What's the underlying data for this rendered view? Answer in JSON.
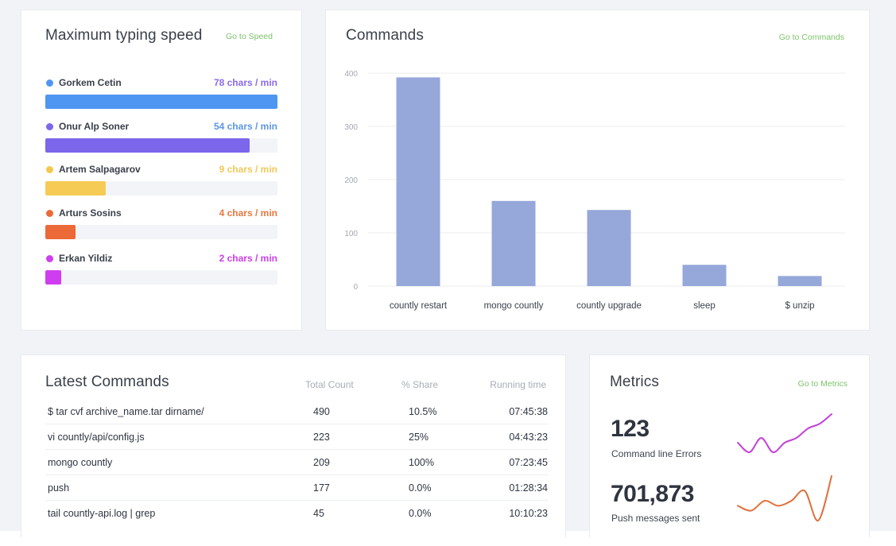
{
  "speed": {
    "title": "Maximum typing speed",
    "goto_label": "Go to Speed",
    "max_value": 78,
    "users": [
      {
        "name": "Gorkem Cetin",
        "value_label": "78 chars / min",
        "value": 78,
        "fill_percent": 100,
        "dot_color": "#4f96f2",
        "bar_color": "#4f96f2",
        "value_color": "#8a6be8"
      },
      {
        "name": "Onur Alp Soner",
        "value_label": "54 chars / min",
        "value": 54,
        "fill_percent": 88,
        "dot_color": "#7c66ec",
        "bar_color": "#7c66ec",
        "value_color": "#5d96e6"
      },
      {
        "name": "Artem Salpagarov",
        "value_label": "9 chars / min",
        "value": 9,
        "fill_percent": 26,
        "dot_color": "#f4c84e",
        "bar_color": "#f6cb55",
        "value_color": "#f0c85a"
      },
      {
        "name": "Arturs Sosins",
        "value_label": "4 chars / min",
        "value": 4,
        "fill_percent": 13,
        "dot_color": "#ec6a37",
        "bar_color": "#ec6a37",
        "value_color": "#e9773f"
      },
      {
        "name": "Erkan Yildiz",
        "value_label": "2 chars / min",
        "value": 2,
        "fill_percent": 7,
        "dot_color": "#cf3df0",
        "bar_color": "#cf3df0",
        "value_color": "#cc3fe8"
      }
    ]
  },
  "commands": {
    "title": "Commands",
    "goto_label": "Go to Commands"
  },
  "chart_data": {
    "type": "bar",
    "title": "Commands",
    "xlabel": "",
    "ylabel": "",
    "categories": [
      "countly restart",
      "mongo countly",
      "countly upgrade",
      "sleep",
      "$ unzip"
    ],
    "values": [
      392,
      160,
      143,
      40,
      19
    ],
    "ylim": [
      0,
      400
    ],
    "yticks": [
      0,
      100,
      200,
      300,
      400
    ],
    "grid": true,
    "bar_color": "#96a8da",
    "legend": "none"
  },
  "latest": {
    "title": "Latest Commands",
    "columns": [
      "Total Count",
      "% Share",
      "Running time"
    ],
    "rows": [
      {
        "command": "$ tar cvf archive_name.tar dirname/",
        "count": "490",
        "share": "10.5%",
        "time": "07:45:38"
      },
      {
        "command": "vi countly/api/config.js",
        "count": "223",
        "share": "25%",
        "time": "04:43:23"
      },
      {
        "command": "mongo countly",
        "count": "209",
        "share": "100%",
        "time": "07:23:45"
      },
      {
        "command": "push",
        "count": "177",
        "share": "0.0%",
        "time": "01:28:34"
      },
      {
        "command": "tail countly-api.log | grep",
        "count": "45",
        "share": "0.0%",
        "time": "10:10:23"
      }
    ]
  },
  "metrics": {
    "title": "Metrics",
    "goto_label": "Go to Metrics",
    "items": [
      {
        "value": "123",
        "label": "Command line Errors",
        "color": "#c440d8",
        "trend": [
          3,
          1,
          4,
          1,
          3,
          4,
          6,
          7,
          9
        ]
      },
      {
        "value": "701,873",
        "label": "Push messages sent",
        "color": "#e0703a",
        "trend": [
          3,
          2,
          4,
          3,
          4,
          6,
          0,
          9
        ]
      }
    ]
  }
}
